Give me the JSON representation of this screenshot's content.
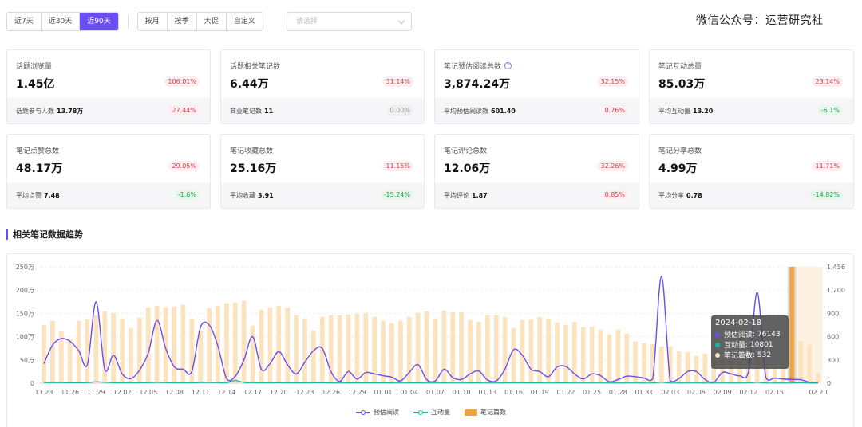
{
  "filters": {
    "range": [
      "近7天",
      "近30天",
      "近90天"
    ],
    "range_active": 2,
    "period": [
      "按月",
      "按季",
      "大促",
      "自定义"
    ],
    "select_placeholder": "请选择"
  },
  "watermark": "微信公众号：运营研究社",
  "cards": [
    {
      "label": "话题浏览量",
      "value": "1.45亿",
      "change": "106.01%",
      "change_dir": "pos",
      "sub_label": "话题参与人数",
      "sub_value": "13.78万",
      "sub_change": "27.44%",
      "sub_dir": "pos"
    },
    {
      "label": "话题相关笔记数",
      "value": "6.44万",
      "change": "31.14%",
      "change_dir": "pos",
      "sub_label": "商业笔记数",
      "sub_value": "11",
      "sub_change": "0.00%",
      "sub_dir": "zero"
    },
    {
      "label": "笔记预估阅读总数",
      "value": "3,874.24万",
      "change": "32.15%",
      "change_dir": "pos",
      "has_help": true,
      "sub_label": "平均预估阅读数",
      "sub_value": "601.40",
      "sub_change": "0.76%",
      "sub_dir": "pos"
    },
    {
      "label": "笔记互动总量",
      "value": "85.03万",
      "change": "23.14%",
      "change_dir": "pos",
      "sub_label": "平均互动量",
      "sub_value": "13.20",
      "sub_change": "-6.1%",
      "sub_dir": "neg"
    },
    {
      "label": "笔记点赞总数",
      "value": "48.17万",
      "change": "29.05%",
      "change_dir": "pos",
      "sub_label": "平均点赞",
      "sub_value": "7.48",
      "sub_change": "-1.6%",
      "sub_dir": "neg"
    },
    {
      "label": "笔记收藏总数",
      "value": "25.16万",
      "change": "11.15%",
      "change_dir": "pos",
      "sub_label": "平均收藏",
      "sub_value": "3.91",
      "sub_change": "-15.24%",
      "sub_dir": "neg"
    },
    {
      "label": "笔记评论总数",
      "value": "12.06万",
      "change": "32.26%",
      "change_dir": "pos",
      "sub_label": "平均评论",
      "sub_value": "1.87",
      "sub_change": "0.85%",
      "sub_dir": "pos"
    },
    {
      "label": "笔记分享总数",
      "value": "4.99万",
      "change": "11.71%",
      "change_dir": "pos",
      "sub_label": "平均分享",
      "sub_value": "0.78",
      "sub_change": "-14.82%",
      "sub_dir": "neg"
    }
  ],
  "section_title": "相关笔记数据趋势",
  "colors": {
    "accent": "#6a4df4",
    "reads": "#6a4df4",
    "interactions": "#1bb3a2",
    "notes": "#f2a33a",
    "notes_light": "#fbe3bd"
  },
  "tooltip": {
    "date": "2024-02-18",
    "rows": [
      {
        "label": "预估阅读",
        "value": "76143",
        "color": "#6a4df4"
      },
      {
        "label": "互动量",
        "value": "10801",
        "color": "#1bb3a2"
      },
      {
        "label": "笔记篇数",
        "value": "532",
        "color": "#fbe3bd"
      }
    ]
  },
  "chart_data": {
    "type": "bar",
    "x": [
      "11.23",
      "11.24",
      "11.25",
      "11.26",
      "11.27",
      "11.28",
      "11.29",
      "11.30",
      "12.01",
      "12.02",
      "12.03",
      "12.04",
      "12.05",
      "12.06",
      "12.07",
      "12.08",
      "12.09",
      "12.10",
      "12.11",
      "12.12",
      "12.13",
      "12.14",
      "12.15",
      "12.16",
      "12.17",
      "12.18",
      "12.19",
      "12.20",
      "12.21",
      "12.22",
      "12.23",
      "12.24",
      "12.25",
      "12.26",
      "12.27",
      "12.28",
      "12.29",
      "12.30",
      "12.31",
      "01.01",
      "01.02",
      "01.03",
      "01.04",
      "01.05",
      "01.06",
      "01.07",
      "01.08",
      "01.09",
      "01.10",
      "01.11",
      "01.12",
      "01.13",
      "01.14",
      "01.15",
      "01.16",
      "01.17",
      "01.18",
      "01.19",
      "01.20",
      "01.21",
      "01.22",
      "01.23",
      "01.24",
      "01.25",
      "01.26",
      "01.27",
      "01.28",
      "01.29",
      "01.30",
      "01.31",
      "02.01",
      "02.02",
      "02.03",
      "02.04",
      "02.05",
      "02.06",
      "02.07",
      "02.08",
      "02.09",
      "02.10",
      "02.11",
      "02.12",
      "02.13",
      "02.14",
      "02.15",
      "02.16",
      "02.17",
      "02.18",
      "02.19",
      "02.20"
    ],
    "x_tick_labels": [
      "11.23",
      "11.26",
      "11.29",
      "12.02",
      "12.05",
      "12.08",
      "12.11",
      "12.14",
      "12.17",
      "12.20",
      "12.23",
      "12.26",
      "12.29",
      "01.01",
      "01.04",
      "01.07",
      "01.10",
      "01.13",
      "01.16",
      "01.19",
      "01.22",
      "01.25",
      "01.28",
      "01.31",
      "02.03",
      "02.06",
      "02.09",
      "02.12",
      "02.15",
      "02.20"
    ],
    "y_left_ticks": [
      "0",
      "50万",
      "100万",
      "150万",
      "200万",
      "250万"
    ],
    "y_left_lim": [
      0,
      2500000
    ],
    "y_right_ticks": [
      "0",
      "300",
      "600",
      "900",
      "1,200",
      "1,456"
    ],
    "y_right_lim": [
      0,
      1456
    ],
    "highlight_index": 87,
    "series": [
      {
        "name": "笔记篇数",
        "type": "bar",
        "axis": "right",
        "values": [
          730,
          780,
          650,
          550,
          780,
          800,
          850,
          900,
          880,
          810,
          690,
          820,
          950,
          970,
          950,
          960,
          980,
          810,
          660,
          940,
          970,
          1000,
          1010,
          1030,
          720,
          920,
          950,
          970,
          950,
          850,
          810,
          660,
          830,
          850,
          850,
          860,
          870,
          880,
          830,
          780,
          750,
          780,
          830,
          880,
          900,
          810,
          910,
          890,
          890,
          790,
          770,
          850,
          850,
          830,
          690,
          790,
          800,
          830,
          810,
          760,
          730,
          770,
          700,
          710,
          670,
          610,
          670,
          620,
          520,
          500,
          490,
          460,
          460,
          400,
          390,
          340,
          370,
          330,
          300,
          290,
          270,
          300,
          330,
          250,
          230,
          230,
          1456,
          532,
          480,
          120
        ]
      },
      {
        "name": "预估阅读",
        "type": "line",
        "axis": "left",
        "values": [
          420000,
          820000,
          960000,
          900000,
          700000,
          400000,
          1750000,
          300000,
          600000,
          200000,
          100000,
          280000,
          650000,
          1350000,
          750000,
          350000,
          300000,
          250000,
          1200000,
          1250000,
          800000,
          100000,
          150000,
          500000,
          1000000,
          300000,
          420000,
          680000,
          400000,
          200000,
          450000,
          700000,
          750000,
          250000,
          40000,
          250000,
          90000,
          230000,
          200000,
          160000,
          130000,
          50000,
          230000,
          400000,
          80000,
          50000,
          300000,
          120000,
          80000,
          200000,
          260000,
          70000,
          50000,
          300000,
          720000,
          600000,
          300000,
          250000,
          140000,
          350000,
          360000,
          200000,
          90000,
          200000,
          160000,
          30000,
          80000,
          150000,
          140000,
          110000,
          100000,
          2300000,
          50000,
          100000,
          250000,
          250000,
          80000,
          20000,
          230000,
          200000,
          160000,
          250000,
          1950000,
          120000,
          110000,
          90000,
          80000,
          76143,
          20000,
          10000
        ]
      },
      {
        "name": "互动量",
        "type": "line",
        "axis": "left",
        "values": [
          12000,
          13000,
          12000,
          11000,
          10000,
          12000,
          30000,
          18000,
          10000,
          9000,
          8000,
          9000,
          12000,
          16000,
          12000,
          9000,
          8000,
          8000,
          14000,
          15000,
          12000,
          8000,
          60000,
          15000,
          12000,
          9000,
          9000,
          10000,
          9000,
          7000,
          8000,
          10000,
          11000,
          7000,
          5000,
          6000,
          6000,
          7000,
          7000,
          6000,
          6000,
          5000,
          6000,
          7000,
          5000,
          5000,
          6000,
          5000,
          5000,
          6000,
          6000,
          5000,
          5000,
          6000,
          9000,
          8000,
          6000,
          6000,
          5000,
          6000,
          6000,
          5000,
          5000,
          5000,
          5000,
          4000,
          4000,
          5000,
          5000,
          4000,
          4000,
          20000,
          4000,
          4000,
          5000,
          5000,
          4000,
          3000,
          5000,
          4000,
          4000,
          5000,
          18000,
          4000,
          4000,
          4000,
          4000,
          10801,
          3000,
          2000
        ]
      }
    ]
  },
  "legend": [
    "预估阅读",
    "互动量",
    "笔记篇数"
  ]
}
